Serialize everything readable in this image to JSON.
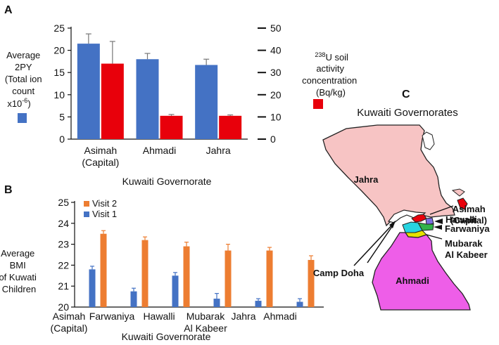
{
  "panels": {
    "a": "A",
    "b": "B",
    "c": "C"
  },
  "colors": {
    "blue": "#4472c4",
    "red": "#e8000b",
    "orange": "#ed7d31",
    "pink_land": "#f7c4c4",
    "magenta": "#ee5ee8",
    "water": "#ffffff"
  },
  "chart_data": [
    {
      "type": "bar",
      "panel": "A",
      "categories": [
        "Asimah (Capital)",
        "Ahmadi",
        "Jahra"
      ],
      "category_lines": [
        [
          "Asimah",
          "(Capital)"
        ],
        [
          "Ahmadi"
        ],
        [
          "Jahra"
        ]
      ],
      "series": [
        {
          "values": [
            21.5,
            18.0,
            16.7
          ],
          "errors": [
            2.2,
            1.3,
            1.3
          ],
          "axis": "left",
          "color": "#4472c4"
        },
        {
          "values": [
            34,
            10.5,
            10.5
          ],
          "errors": [
            10,
            0.6,
            0.4
          ],
          "axis": "right",
          "color": "#e8000b"
        }
      ],
      "left_axis": {
        "min": 0,
        "max": 25,
        "ticks": [
          0,
          5,
          10,
          15,
          20,
          25
        ]
      },
      "right_axis": {
        "min": 0,
        "max": 50,
        "ticks": [
          0,
          10,
          20,
          30,
          40,
          50
        ]
      },
      "xlabel": "Kuwaiti Governorate",
      "ylabel_left_lines": [
        "Average",
        "2PY",
        "(Total ion",
        "count",
        "x10"
      ],
      "ylabel_left_exp": "-6",
      "ylabel_left_tail": ")",
      "ylabel_right_sup": "238",
      "ylabel_right_lines": [
        "U soil",
        "activity",
        "concentration",
        "(Bq/kg)"
      ]
    },
    {
      "type": "bar",
      "panel": "B",
      "categories": [
        "Asimah (Capital)",
        "Farwaniya",
        "Hawalli",
        "Mubarak Al Kabeer",
        "Jahra",
        "Ahmadi"
      ],
      "category_lines": [
        [
          "Asimah",
          "(Capital)"
        ],
        [
          "Farwaniya"
        ],
        [
          "Hawalli"
        ],
        [
          "Mubarak",
          "Al Kabeer"
        ],
        [
          "Jahra"
        ],
        [
          "Ahmadi"
        ]
      ],
      "series": [
        {
          "name": "Visit 1",
          "values": [
            21.8,
            20.75,
            21.5,
            20.4,
            20.3,
            20.25
          ],
          "errors": [
            0.15,
            0.15,
            0.15,
            0.25,
            0.1,
            0.15
          ],
          "color": "#4472c4"
        },
        {
          "name": "Visit 2",
          "values": [
            23.5,
            23.2,
            22.9,
            22.7,
            22.7,
            22.25
          ],
          "errors": [
            0.15,
            0.15,
            0.2,
            0.3,
            0.15,
            0.2
          ],
          "color": "#ed7d31"
        }
      ],
      "y_axis": {
        "min": 20,
        "max": 25,
        "ticks": [
          20,
          21,
          22,
          23,
          24,
          25
        ]
      },
      "xlabel": "Kuwaiti Governorate",
      "ylabel_lines": [
        "Average",
        "BMI",
        "of Kuwati",
        "Children"
      ],
      "legend_order": [
        "Visit 2",
        "Visit 1"
      ],
      "legend": "top-left"
    }
  ],
  "map": {
    "title": "Kuwaiti Governorates",
    "labels": {
      "jahra": "Jahra",
      "asimah": [
        "Asimah",
        "(Capital)"
      ],
      "hawalli": "Hawalli",
      "farwaniya": "Farwaniya",
      "mubarak": [
        "Mubarak",
        "Al Kabeer"
      ],
      "ahmadi": "Ahmadi",
      "camp_doha": "Camp Doha"
    }
  }
}
